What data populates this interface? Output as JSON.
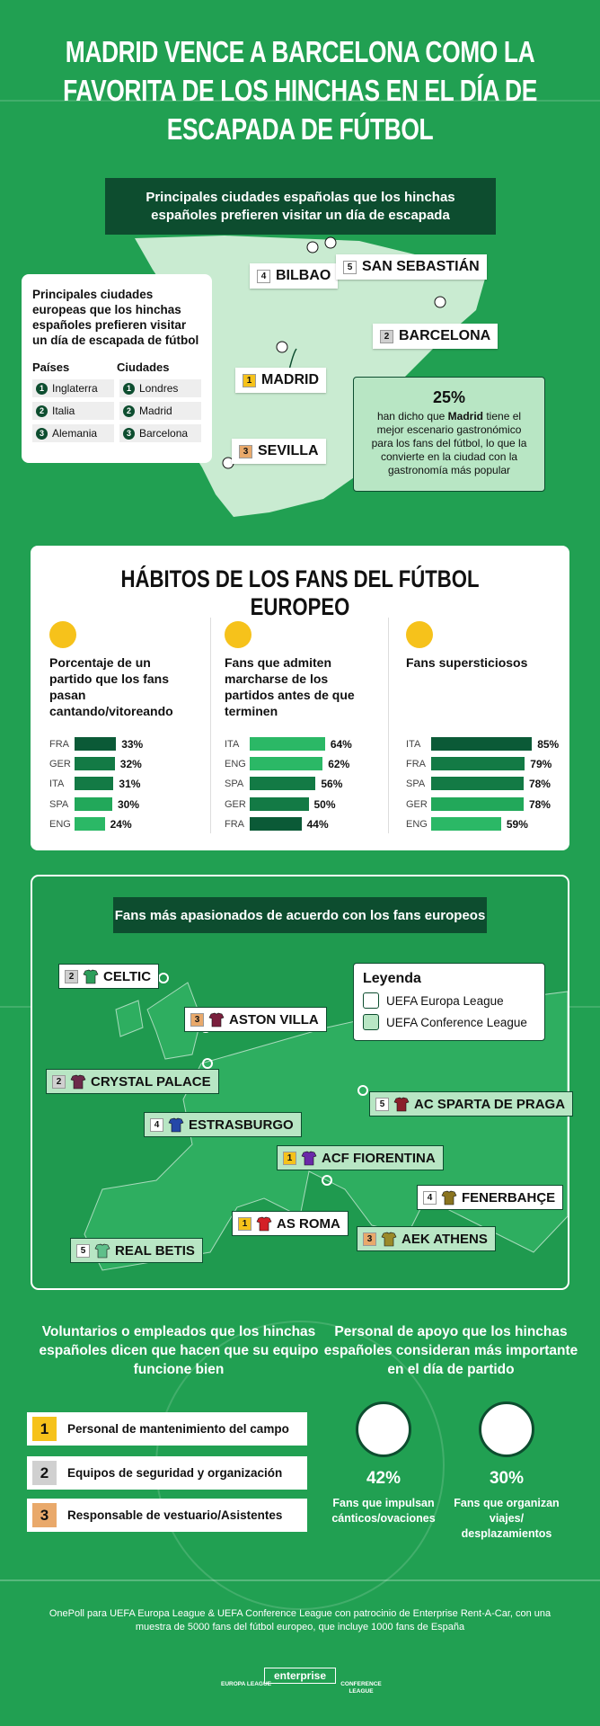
{
  "header": {
    "title": "MADRID VENCE A BARCELONA COMO LA FAVORITA DE LOS HINCHAS EN EL DÍA DE ESCAPADA DE FÚTBOL"
  },
  "spain": {
    "title": "Principales ciudades españolas que los hinchas españoles prefieren visitar un día de escapada",
    "cities": [
      {
        "rank": 4,
        "name": "BILBAO"
      },
      {
        "rank": 5,
        "name": "SAN SEBASTIÁN"
      },
      {
        "rank": 2,
        "name": "BARCELONA"
      },
      {
        "rank": 1,
        "name": "MADRID"
      },
      {
        "rank": 3,
        "name": "SEVILLA"
      }
    ],
    "callout": {
      "value": "25%",
      "text": [
        "han dicho que ",
        "Madrid",
        " tiene el mejor escenario gastronómico para los fans del fútbol, lo que la convierte en la ciudad con la gastronomía más popular"
      ]
    }
  },
  "europe_cities": {
    "title": "Principales ciudades europeas que los hinchas españoles prefieren visitar un día de escapada de fútbol",
    "headers": [
      "Países",
      "Ciudades"
    ],
    "rows": [
      {
        "rank": 1,
        "country": "Inglaterra",
        "city": "Londres"
      },
      {
        "rank": 2,
        "country": "Italia",
        "city": "Madrid"
      },
      {
        "rank": 3,
        "country": "Alemania",
        "city": "Barcelona"
      }
    ]
  },
  "habits": {
    "title": "HÁBITOS DE LOS FANS DEL FÚTBOL EUROPEO"
  },
  "chart_data": [
    {
      "type": "bar",
      "title": "Porcentaje de un partido que los fans pasan cantando/vitoreando",
      "categories": [
        "FRA",
        "GER",
        "ITA",
        "SPA",
        "ENG"
      ],
      "values": [
        33,
        32,
        31,
        30,
        24
      ],
      "value_labels": [
        "33%",
        "32%",
        "31%",
        "30%",
        "24%"
      ],
      "colors": [
        "#0b5a37",
        "#137a45",
        "#137a45",
        "#22a85a",
        "#2bb866"
      ],
      "xlim": [
        0,
        100
      ]
    },
    {
      "type": "bar",
      "title": "Fans que admiten marcharse de los partidos antes de que terminen",
      "categories": [
        "ITA",
        "ENG",
        "SPA",
        "GER",
        "FRA"
      ],
      "values": [
        64,
        62,
        56,
        50,
        44
      ],
      "value_labels": [
        "64%",
        "62%",
        "56%",
        "50%",
        "44%"
      ],
      "colors": [
        "#2bb866",
        "#2bb866",
        "#137a45",
        "#137a45",
        "#0b5a37"
      ],
      "xlim": [
        0,
        100
      ]
    },
    {
      "type": "bar",
      "title": "Fans supersticiosos",
      "categories": [
        "ITA",
        "FRA",
        "SPA",
        "GER",
        "ENG"
      ],
      "values": [
        85,
        79,
        78,
        78,
        59
      ],
      "value_labels": [
        "85%",
        "79%",
        "78%",
        "78%",
        "59%"
      ],
      "colors": [
        "#0b5a37",
        "#137a45",
        "#137a45",
        "#22a85a",
        "#2bb866"
      ],
      "xlim": [
        0,
        100
      ]
    }
  ],
  "passion": {
    "title": "Fans más apasionados de acuerdo con los fans europeos",
    "legend": {
      "title": "Leyenda",
      "items": [
        "UEFA Europa League",
        "UEFA Conference League"
      ]
    },
    "teams": [
      {
        "rank": 2,
        "name": "CELTIC",
        "league": "UEFA Europa League",
        "shirt": "#2e9e5b"
      },
      {
        "rank": 3,
        "name": "ASTON VILLA",
        "league": "UEFA Europa League",
        "shirt": "#7a1f3d"
      },
      {
        "rank": 2,
        "name": "CRYSTAL PALACE",
        "league": "UEFA Conference League",
        "shirt": "#6b2a4a"
      },
      {
        "rank": 4,
        "name": "ESTRASBURGO",
        "league": "UEFA Conference League",
        "shirt": "#2447a8"
      },
      {
        "rank": 5,
        "name": "AC SPARTA DE PRAGA",
        "league": "UEFA Conference League",
        "shirt": "#8a1f2b"
      },
      {
        "rank": 1,
        "name": "ACF FIORENTINA",
        "league": "UEFA Conference League",
        "shirt": "#6a2aa8"
      },
      {
        "rank": 4,
        "name": "FENERBAHÇE",
        "league": "UEFA Europa League",
        "shirt": "#8a7420"
      },
      {
        "rank": 1,
        "name": "AS ROMA",
        "league": "UEFA Europa League",
        "shirt": "#d42027"
      },
      {
        "rank": 3,
        "name": "AEK ATHENS",
        "league": "UEFA Conference League",
        "shirt": "#9a8a2a"
      },
      {
        "rank": 5,
        "name": "REAL BETIS",
        "league": "UEFA Conference League",
        "shirt": "#5fbf8a"
      }
    ]
  },
  "volunteers": {
    "title": "Voluntarios o empleados que los hinchas españoles dicen que hacen que su equipo funcione bien",
    "items": [
      {
        "rank": 1,
        "text": "Personal de mantenimiento del campo"
      },
      {
        "rank": 2,
        "text": "Equipos de seguridad y organización"
      },
      {
        "rank": 3,
        "text": "Responsable de vestuario/Asistentes"
      }
    ]
  },
  "support": {
    "title": "Personal de apoyo que los hinchas españoles consideran más importante en el día de partido",
    "stats": [
      {
        "value": "42%",
        "label": "Fans que impulsan cánticos/ovaciones"
      },
      {
        "value": "30%",
        "label": "Fans que organizan viajes/ desplazamientos"
      }
    ]
  },
  "footer": {
    "source": "OnePoll para UEFA Europa League & UEFA Conference League con patrocinio de Enterprise Rent-A-Car, con una muestra de 5000 fans del fútbol europeo, que incluye 1000 fans de España",
    "logos": [
      "EUROPA LEAGUE",
      "enterprise",
      "CONFERENCE LEAGUE"
    ]
  }
}
